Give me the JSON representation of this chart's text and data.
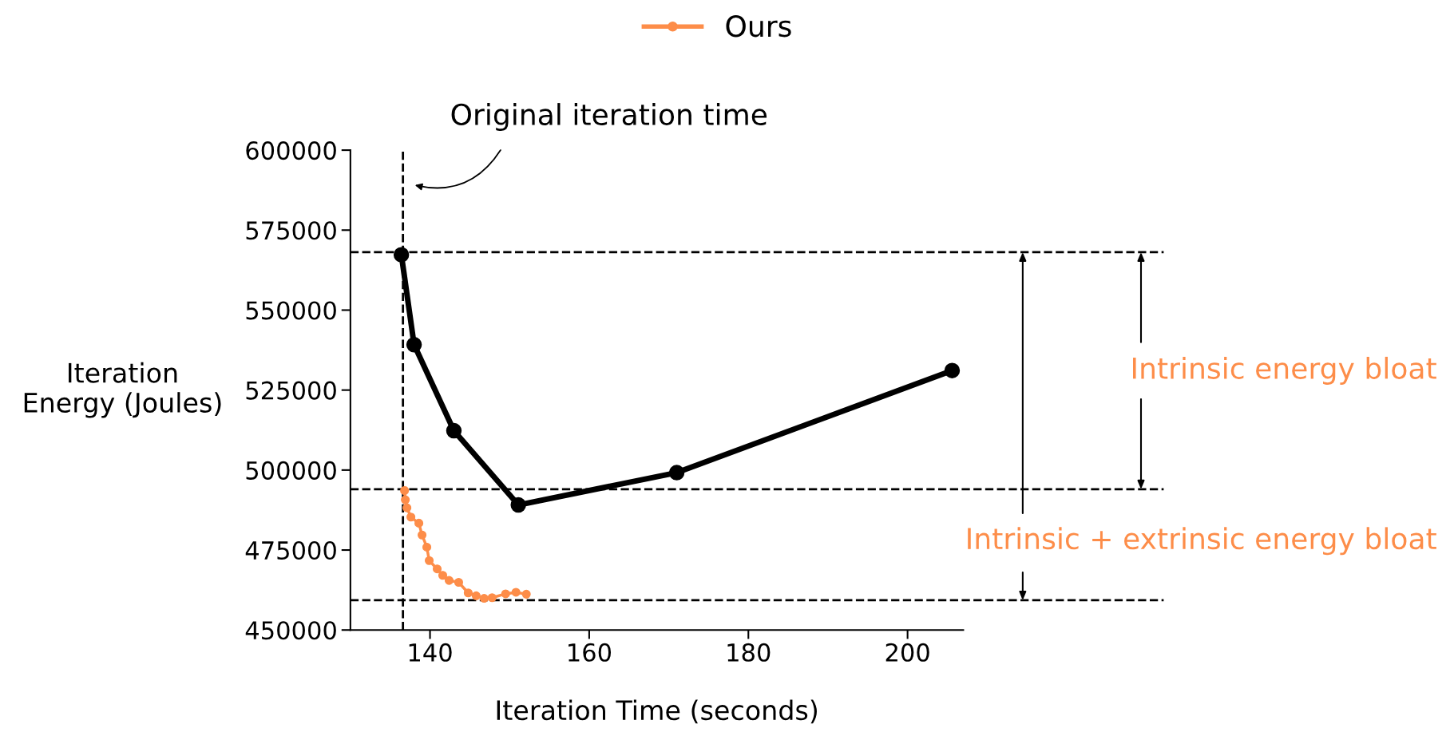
{
  "chart_data": {
    "type": "line",
    "xlabel": "Iteration Time (seconds)",
    "ylabel": "Iteration\nEnergy (Joules)",
    "xlim": [
      130,
      207
    ],
    "xticks": [
      140,
      160,
      180,
      200
    ],
    "ylim": [
      450000,
      600000
    ],
    "yticks": [
      450000,
      475000,
      500000,
      525000,
      550000,
      575000,
      600000
    ],
    "marker": "circle",
    "line_style": "solid",
    "grid": false,
    "legend": "top",
    "series": [
      {
        "color": "#000000",
        "x": [
          136.4,
          138.0,
          143.0,
          151.1,
          171.0,
          205.6
        ],
        "values": [
          567300,
          539200,
          512300,
          489100,
          499200,
          531100
        ]
      },
      {
        "name": "Ours",
        "color": "#fd8d49",
        "x": [
          136.8,
          136.9,
          137.1,
          137.6,
          138.6,
          139.0,
          139.6,
          139.9,
          140.9,
          141.6,
          142.4,
          143.6,
          144.8,
          145.8,
          146.8,
          147.8,
          149.5,
          150.8,
          152.1
        ],
        "values": [
          493600,
          490700,
          488200,
          485300,
          483400,
          479700,
          475900,
          471700,
          469100,
          467100,
          465500,
          464900,
          461600,
          460700,
          459900,
          460100,
          461300,
          461800,
          461200
        ]
      }
    ],
    "ref_lines": [
      {
        "axis": "x",
        "value": 136.6,
        "line_style": "dashed",
        "color": "#000000"
      },
      {
        "axis": "y",
        "value": 568100,
        "line_style": "dashed",
        "color": "#000000"
      },
      {
        "axis": "y",
        "value": 494000,
        "line_style": "dashed",
        "color": "#000000"
      },
      {
        "axis": "y",
        "value": 459300,
        "line_style": "dashed",
        "color": "#000000"
      }
    ],
    "annotations": [
      "Original iteration time",
      "Intrinsic energy bloat",
      "Intrinsic + extrinsic energy bloat"
    ]
  }
}
